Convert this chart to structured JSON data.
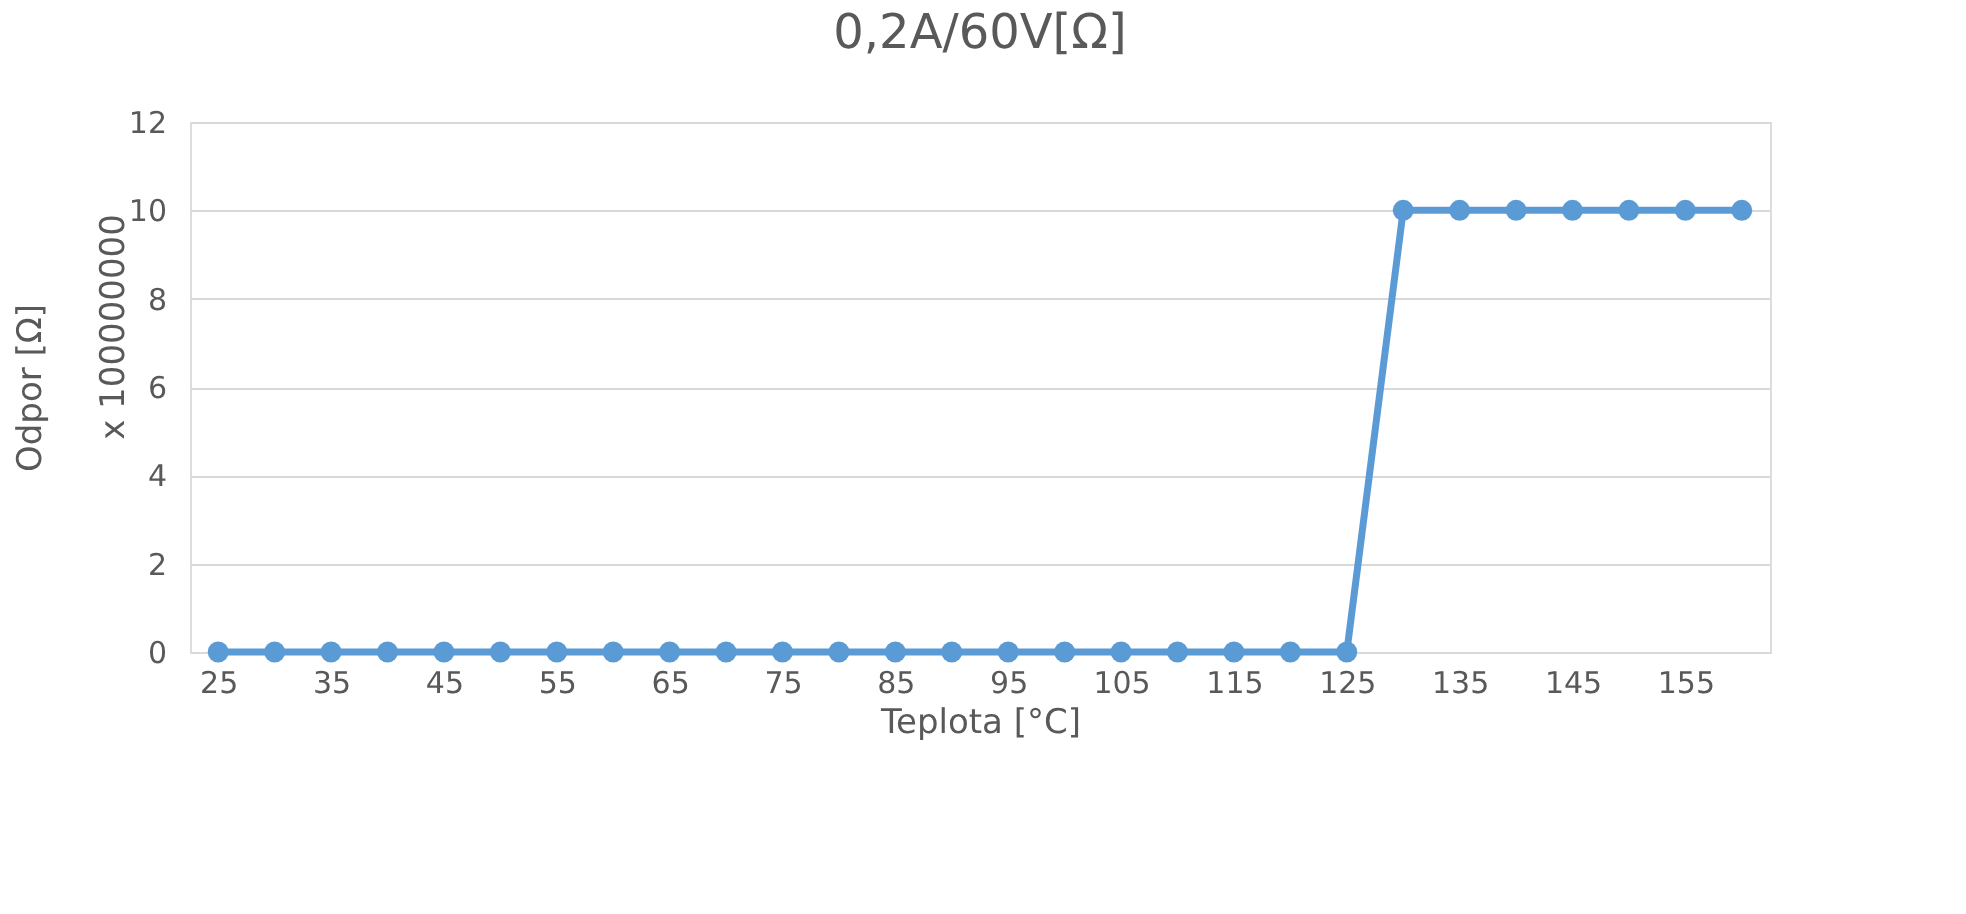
{
  "chart_data": {
    "type": "line",
    "title": "0,2A/60V[Ω]",
    "xlabel": "Teplota [°C]",
    "ylabel": "Odpor [Ω]",
    "annotations": [
      "x 100000000"
    ],
    "categories": [
      "25",
      null,
      "35",
      null,
      "45",
      null,
      "55",
      null,
      "65",
      null,
      "75",
      null,
      "85",
      null,
      "95",
      null,
      "105",
      null,
      "115",
      null,
      "125",
      null,
      "135",
      null,
      "145",
      null,
      "155",
      null
    ],
    "series": [
      {
        "color": "#5b9bd5",
        "values": [
          0,
          0,
          0,
          0,
          0,
          0,
          0,
          0,
          0,
          0,
          0,
          0,
          0,
          0,
          0,
          0,
          0,
          0,
          0,
          0,
          0,
          10,
          10,
          10,
          10,
          10,
          10,
          10
        ]
      }
    ],
    "ylim": [
      0,
      12
    ],
    "yticks": [
      0,
      2,
      4,
      6,
      8,
      10,
      12
    ],
    "grid": "y",
    "marker": "circle",
    "line_style": "solid"
  }
}
